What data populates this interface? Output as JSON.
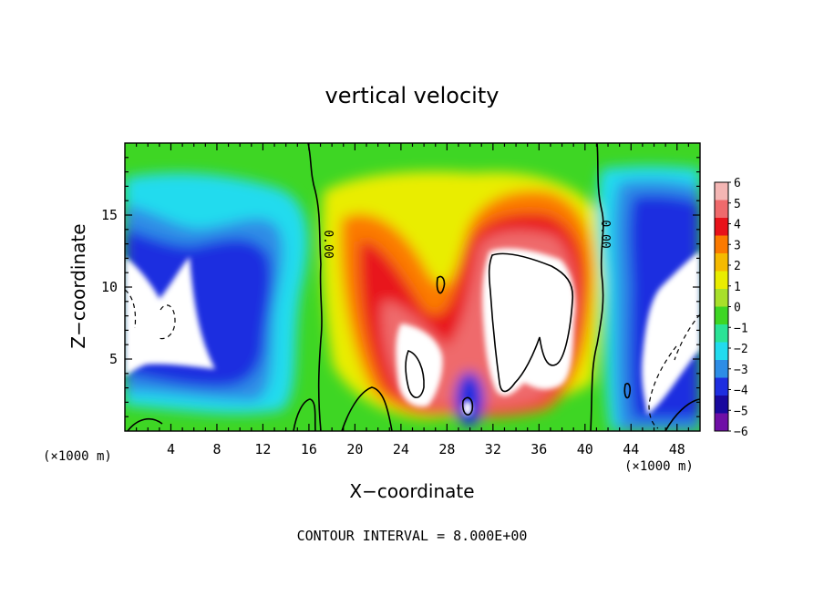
{
  "chart_data": {
    "type": "heatmap",
    "title": "vertical velocity",
    "xlabel": "X−coordinate",
    "ylabel": "Z−coordinate",
    "x_unit_left": "(×1000 m)",
    "x_unit_right": "(×1000 m)",
    "xlim": [
      0,
      50
    ],
    "ylim": [
      0,
      20
    ],
    "x_ticks": [
      4,
      8,
      12,
      16,
      20,
      24,
      28,
      32,
      36,
      40,
      44,
      48
    ],
    "x_tick_labels": [
      "4",
      "8",
      "12",
      "16",
      "20",
      "24",
      "28",
      "32",
      "36",
      "40",
      "44",
      "48"
    ],
    "y_ticks": [
      5,
      10,
      15
    ],
    "y_tick_labels": [
      "5",
      "10",
      "15"
    ],
    "colorbar": {
      "labels": [
        "6",
        "5",
        "4",
        "3",
        "2",
        "1",
        "0",
        "−1",
        "−2",
        "−3",
        "−4",
        "−5",
        "−6"
      ],
      "colors": [
        "#f4b6b4",
        "#ef6a6c",
        "#e8121a",
        "#fb7a00",
        "#f5ba00",
        "#e9ed00",
        "#a8e02a",
        "#3ed624",
        "#2ae396",
        "#22dbee",
        "#2d8de6",
        "#1e2ee0",
        "#19099e",
        "#6f0fa6"
      ]
    },
    "contour_labels": [
      "0.00",
      "0.00"
    ],
    "footer": "CONTOUR INTERVAL = 8.000E+00"
  }
}
